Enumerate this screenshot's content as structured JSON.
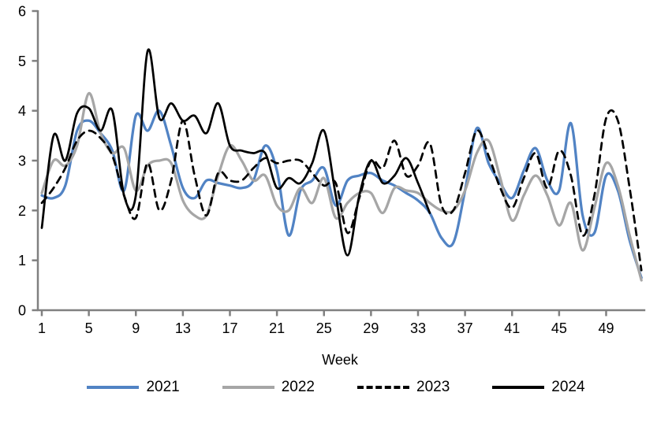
{
  "chart_data": {
    "type": "line",
    "title": "",
    "xlabel": "Week",
    "ylabel": "",
    "grid": false,
    "legend_position": "bottom",
    "axis_color": "#808080",
    "text_color": "#000000",
    "ylim": [
      0,
      6
    ],
    "xlim": [
      1,
      52.2
    ],
    "y_ticks": [
      0,
      1,
      2,
      3,
      4,
      5,
      6
    ],
    "x_ticks": [
      1,
      5,
      9,
      13,
      17,
      21,
      25,
      29,
      33,
      37,
      41,
      45,
      49
    ],
    "x": [
      1,
      2,
      3,
      4,
      5,
      6,
      7,
      8,
      9,
      10,
      11,
      12,
      13,
      14,
      15,
      16,
      17,
      18,
      19,
      20,
      21,
      22,
      23,
      24,
      25,
      26,
      27,
      28,
      29,
      30,
      31,
      32,
      33,
      34,
      35,
      36,
      37,
      38,
      39,
      40,
      41,
      42,
      43,
      44,
      45,
      46,
      47,
      48,
      49,
      50,
      51,
      52
    ],
    "series": [
      {
        "name": "2021",
        "color": "#5183C4",
        "style": "solid",
        "start_week": 1,
        "values": [
          2.3,
          2.25,
          2.5,
          3.6,
          3.8,
          3.55,
          3.2,
          2.4,
          3.9,
          3.6,
          4.0,
          3.3,
          2.45,
          2.25,
          2.6,
          2.55,
          2.5,
          2.45,
          2.6,
          3.3,
          2.8,
          1.5,
          2.4,
          2.6,
          2.85,
          2.1,
          2.6,
          2.7,
          2.75,
          2.6,
          2.5,
          2.35,
          2.2,
          1.95,
          1.45,
          1.35,
          2.4,
          3.65,
          2.95,
          2.55,
          2.25,
          2.8,
          3.25,
          2.6,
          2.4,
          3.75,
          1.9,
          1.55,
          2.7,
          2.4,
          1.4,
          0.65
        ]
      },
      {
        "name": "2022",
        "color": "#A6A6A6",
        "style": "solid",
        "start_week": 1,
        "values": [
          2.35,
          3.0,
          2.9,
          3.3,
          4.35,
          3.55,
          3.15,
          3.25,
          2.4,
          2.9,
          3.0,
          2.95,
          2.2,
          1.9,
          1.9,
          2.7,
          3.3,
          3.0,
          2.6,
          2.7,
          2.1,
          2.0,
          2.45,
          2.15,
          2.65,
          1.85,
          2.15,
          2.35,
          2.35,
          1.95,
          2.45,
          2.4,
          2.35,
          2.15,
          2.0,
          2.0,
          2.4,
          3.15,
          3.4,
          2.65,
          1.8,
          2.3,
          2.7,
          2.3,
          1.7,
          2.15,
          1.2,
          2.05,
          2.95,
          2.5,
          1.5,
          0.6
        ]
      },
      {
        "name": "2023",
        "color": "#000000",
        "style": "dashed",
        "start_week": 1,
        "values": [
          2.15,
          2.45,
          2.85,
          3.4,
          3.6,
          3.45,
          3.1,
          2.3,
          1.85,
          2.95,
          2.0,
          2.6,
          3.8,
          2.7,
          1.9,
          2.75,
          2.6,
          2.6,
          2.85,
          3.05,
          2.95,
          3.0,
          3.0,
          2.75,
          2.5,
          2.55,
          1.55,
          2.25,
          3.0,
          2.85,
          3.4,
          2.7,
          2.9,
          3.35,
          2.1,
          2.0,
          2.75,
          3.6,
          3.1,
          2.45,
          2.05,
          2.65,
          3.15,
          2.45,
          3.2,
          2.7,
          1.5,
          2.3,
          3.85,
          3.8,
          2.45,
          0.8
        ]
      },
      {
        "name": "2024",
        "color": "#000000",
        "style": "solid",
        "start_week": 1,
        "values": [
          1.65,
          3.5,
          3.0,
          3.95,
          4.05,
          3.6,
          4.0,
          2.3,
          2.3,
          5.2,
          3.85,
          4.15,
          3.8,
          3.9,
          3.55,
          4.15,
          3.3,
          3.2,
          3.15,
          3.15,
          2.45,
          2.65,
          2.55,
          2.95,
          3.6,
          2.3,
          1.1,
          2.3,
          3.0,
          2.55,
          2.7,
          3.05,
          2.55,
          1.95
        ]
      }
    ]
  }
}
